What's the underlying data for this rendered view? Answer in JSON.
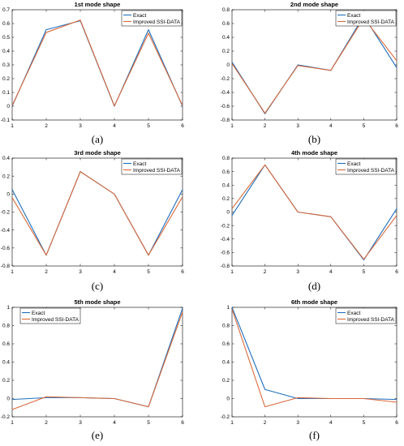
{
  "colors": {
    "exact": "#1f6fbd",
    "improved": "#d9693a"
  },
  "chart_data": [
    {
      "type": "line",
      "title": "1st mode shape",
      "caption": "(a)",
      "x": [
        1,
        2,
        3,
        4,
        5,
        6
      ],
      "xticks": [
        1,
        2,
        3,
        4,
        5,
        6
      ],
      "ylim": [
        -0.1,
        0.7
      ],
      "yticks": [
        -0.1,
        0,
        0.1,
        0.2,
        0.3,
        0.4,
        0.5,
        0.6,
        0.7
      ],
      "legend_position": "top-right",
      "grid": false,
      "series": [
        {
          "name": "Exact",
          "values": [
            0.0,
            0.555,
            0.62,
            0.0,
            0.555,
            0.0
          ]
        },
        {
          "name": "Improved SSI-DATA",
          "values": [
            0.005,
            0.535,
            0.625,
            0.003,
            0.53,
            0.005
          ]
        }
      ]
    },
    {
      "type": "line",
      "title": "2nd mode shape",
      "caption": "(b)",
      "x": [
        1,
        2,
        3,
        4,
        5,
        6
      ],
      "xticks": [
        1,
        2,
        3,
        4,
        5,
        6
      ],
      "ylim": [
        -0.8,
        0.8
      ],
      "yticks": [
        -0.8,
        -0.6,
        -0.4,
        -0.2,
        0,
        0.2,
        0.4,
        0.6,
        0.8
      ],
      "legend_position": "top-right",
      "grid": false,
      "series": [
        {
          "name": "Exact",
          "values": [
            0.04,
            -0.71,
            0.0,
            -0.08,
            0.71,
            -0.04
          ]
        },
        {
          "name": "Improved SSI-DATA",
          "values": [
            0.02,
            -0.7,
            -0.01,
            -0.08,
            0.68,
            0.06
          ]
        }
      ]
    },
    {
      "type": "line",
      "title": "3rd mode shape",
      "caption": "(c)",
      "x": [
        1,
        2,
        3,
        4,
        5,
        6
      ],
      "xticks": [
        1,
        2,
        3,
        4,
        5,
        6
      ],
      "ylim": [
        -0.8,
        0.4
      ],
      "yticks": [
        -0.8,
        -0.6,
        -0.4,
        -0.2,
        0,
        0.2,
        0.4
      ],
      "legend_position": "top-right",
      "grid": false,
      "series": [
        {
          "name": "Exact",
          "values": [
            0.05,
            -0.68,
            0.25,
            0.0,
            -0.68,
            0.05
          ]
        },
        {
          "name": "Improved SSI-DATA",
          "values": [
            -0.04,
            -0.68,
            0.25,
            0.0,
            -0.68,
            -0.03
          ]
        }
      ]
    },
    {
      "type": "line",
      "title": "4th mode shape",
      "caption": "(d)",
      "x": [
        1,
        2,
        3,
        4,
        5,
        6
      ],
      "xticks": [
        1,
        2,
        3,
        4,
        5,
        6
      ],
      "ylim": [
        -0.8,
        0.8
      ],
      "yticks": [
        -0.8,
        -0.6,
        -0.4,
        -0.2,
        0,
        0.2,
        0.4,
        0.6,
        0.8
      ],
      "legend_position": "top-right",
      "grid": false,
      "series": [
        {
          "name": "Exact",
          "values": [
            -0.05,
            0.7,
            0.0,
            -0.07,
            -0.71,
            0.05
          ]
        },
        {
          "name": "Improved SSI-DATA",
          "values": [
            0.05,
            0.7,
            0.0,
            -0.07,
            -0.7,
            -0.05
          ]
        }
      ]
    },
    {
      "type": "line",
      "title": "5th mode shape",
      "caption": "(e)",
      "x": [
        1,
        2,
        3,
        4,
        5,
        6
      ],
      "xticks": [
        1,
        2,
        3,
        4,
        5,
        6
      ],
      "ylim": [
        -0.2,
        1
      ],
      "yticks": [
        -0.2,
        0,
        0.2,
        0.4,
        0.6,
        0.8,
        1
      ],
      "legend_position": "top-left",
      "grid": false,
      "series": [
        {
          "name": "Exact",
          "values": [
            -0.01,
            0.01,
            0.01,
            0.0,
            -0.09,
            0.99
          ]
        },
        {
          "name": "Improved SSI-DATA",
          "values": [
            -0.12,
            0.02,
            0.01,
            0.0,
            -0.09,
            0.95
          ]
        }
      ]
    },
    {
      "type": "line",
      "title": "6th mode shape",
      "caption": "(f)",
      "x": [
        1,
        2,
        3,
        4,
        5,
        6
      ],
      "xticks": [
        1,
        2,
        3,
        4,
        5,
        6
      ],
      "ylim": [
        -0.2,
        1
      ],
      "yticks": [
        -0.2,
        0,
        0.2,
        0.4,
        0.6,
        0.8,
        1
      ],
      "legend_position": "top-right",
      "grid": false,
      "series": [
        {
          "name": "Exact",
          "values": [
            1.0,
            0.1,
            0.0,
            0.0,
            0.0,
            -0.01
          ]
        },
        {
          "name": "Improved SSI-DATA",
          "values": [
            0.98,
            -0.09,
            0.01,
            0.0,
            0.0,
            -0.04
          ]
        }
      ]
    }
  ]
}
